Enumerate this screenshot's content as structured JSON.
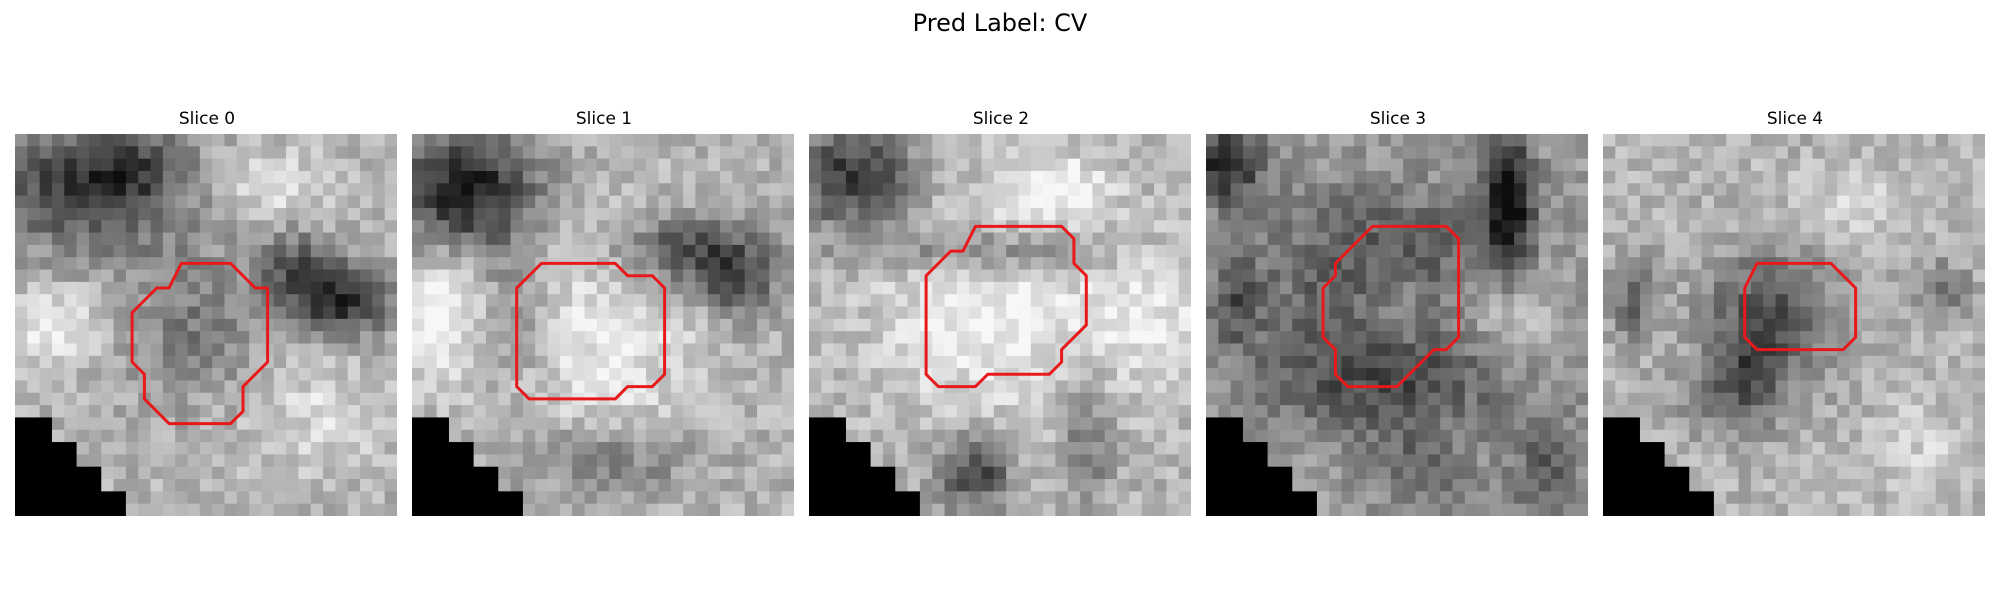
{
  "figure": {
    "title": "Pred Label: CV"
  },
  "panels": [
    {
      "title": "Slice 0"
    },
    {
      "title": "Slice 1"
    },
    {
      "title": "Slice 2"
    },
    {
      "title": "Slice 3"
    },
    {
      "title": "Slice 4"
    }
  ],
  "colors": {
    "contour": "#e8191b",
    "mask": "#000000",
    "background": "#ffffff"
  },
  "colormap": "gray",
  "image_grid": "31x31 grayscale CT patch per slice"
}
